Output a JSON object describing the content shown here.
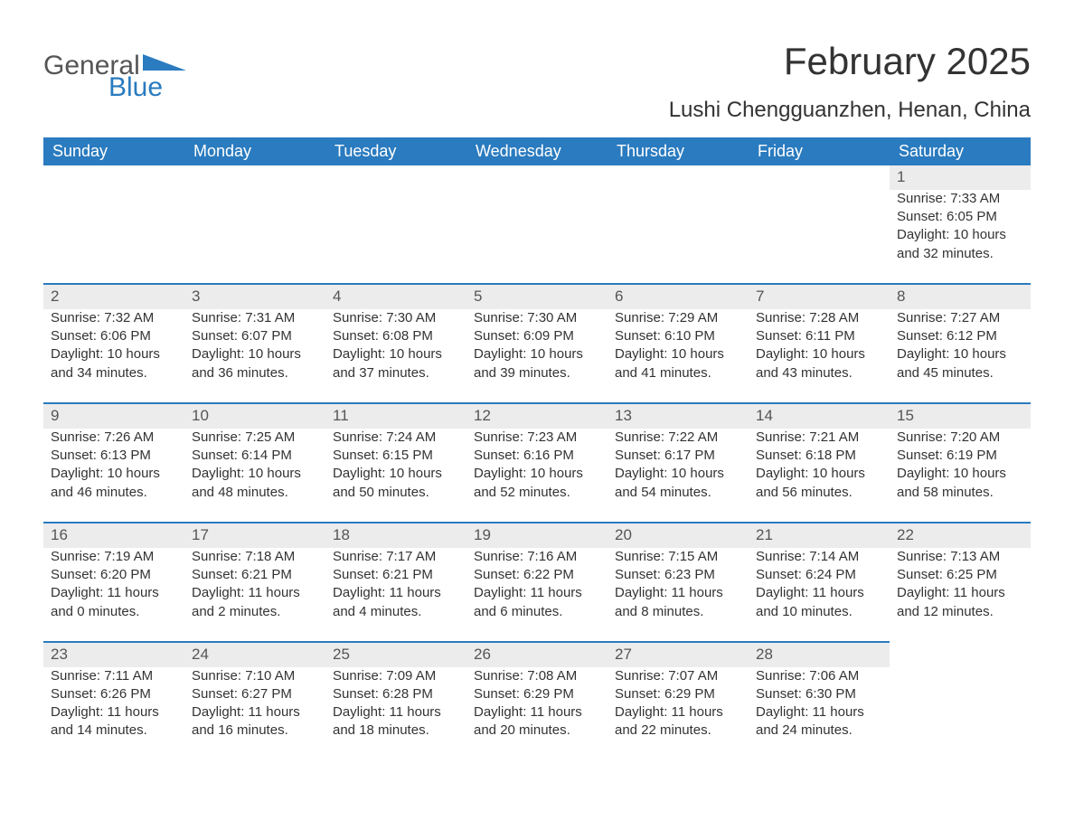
{
  "brand": {
    "name_gray": "General",
    "name_blue": "Blue"
  },
  "title": "February 2025",
  "location": "Lushi Chengguanzhen, Henan, China",
  "colors": {
    "header_bg": "#2a7bbf",
    "header_text": "#ffffff",
    "daynum_bg": "#ececec",
    "bg": "#ffffff",
    "text": "#333333",
    "brand_gray": "#555555",
    "brand_blue": "#2a7bbf"
  },
  "weekday_headers": [
    "Sunday",
    "Monday",
    "Tuesday",
    "Wednesday",
    "Thursday",
    "Friday",
    "Saturday"
  ],
  "weeks": [
    {
      "nums": [
        "",
        "",
        "",
        "",
        "",
        "",
        "1"
      ],
      "cells": [
        "",
        "",
        "",
        "",
        "",
        "",
        "Sunrise: 7:33 AM\nSunset: 6:05 PM\nDaylight: 10 hours and 32 minutes."
      ]
    },
    {
      "nums": [
        "2",
        "3",
        "4",
        "5",
        "6",
        "7",
        "8"
      ],
      "cells": [
        "Sunrise: 7:32 AM\nSunset: 6:06 PM\nDaylight: 10 hours and 34 minutes.",
        "Sunrise: 7:31 AM\nSunset: 6:07 PM\nDaylight: 10 hours and 36 minutes.",
        "Sunrise: 7:30 AM\nSunset: 6:08 PM\nDaylight: 10 hours and 37 minutes.",
        "Sunrise: 7:30 AM\nSunset: 6:09 PM\nDaylight: 10 hours and 39 minutes.",
        "Sunrise: 7:29 AM\nSunset: 6:10 PM\nDaylight: 10 hours and 41 minutes.",
        "Sunrise: 7:28 AM\nSunset: 6:11 PM\nDaylight: 10 hours and 43 minutes.",
        "Sunrise: 7:27 AM\nSunset: 6:12 PM\nDaylight: 10 hours and 45 minutes."
      ]
    },
    {
      "nums": [
        "9",
        "10",
        "11",
        "12",
        "13",
        "14",
        "15"
      ],
      "cells": [
        "Sunrise: 7:26 AM\nSunset: 6:13 PM\nDaylight: 10 hours and 46 minutes.",
        "Sunrise: 7:25 AM\nSunset: 6:14 PM\nDaylight: 10 hours and 48 minutes.",
        "Sunrise: 7:24 AM\nSunset: 6:15 PM\nDaylight: 10 hours and 50 minutes.",
        "Sunrise: 7:23 AM\nSunset: 6:16 PM\nDaylight: 10 hours and 52 minutes.",
        "Sunrise: 7:22 AM\nSunset: 6:17 PM\nDaylight: 10 hours and 54 minutes.",
        "Sunrise: 7:21 AM\nSunset: 6:18 PM\nDaylight: 10 hours and 56 minutes.",
        "Sunrise: 7:20 AM\nSunset: 6:19 PM\nDaylight: 10 hours and 58 minutes."
      ]
    },
    {
      "nums": [
        "16",
        "17",
        "18",
        "19",
        "20",
        "21",
        "22"
      ],
      "cells": [
        "Sunrise: 7:19 AM\nSunset: 6:20 PM\nDaylight: 11 hours and 0 minutes.",
        "Sunrise: 7:18 AM\nSunset: 6:21 PM\nDaylight: 11 hours and 2 minutes.",
        "Sunrise: 7:17 AM\nSunset: 6:21 PM\nDaylight: 11 hours and 4 minutes.",
        "Sunrise: 7:16 AM\nSunset: 6:22 PM\nDaylight: 11 hours and 6 minutes.",
        "Sunrise: 7:15 AM\nSunset: 6:23 PM\nDaylight: 11 hours and 8 minutes.",
        "Sunrise: 7:14 AM\nSunset: 6:24 PM\nDaylight: 11 hours and 10 minutes.",
        "Sunrise: 7:13 AM\nSunset: 6:25 PM\nDaylight: 11 hours and 12 minutes."
      ]
    },
    {
      "nums": [
        "23",
        "24",
        "25",
        "26",
        "27",
        "28",
        ""
      ],
      "cells": [
        "Sunrise: 7:11 AM\nSunset: 6:26 PM\nDaylight: 11 hours and 14 minutes.",
        "Sunrise: 7:10 AM\nSunset: 6:27 PM\nDaylight: 11 hours and 16 minutes.",
        "Sunrise: 7:09 AM\nSunset: 6:28 PM\nDaylight: 11 hours and 18 minutes.",
        "Sunrise: 7:08 AM\nSunset: 6:29 PM\nDaylight: 11 hours and 20 minutes.",
        "Sunrise: 7:07 AM\nSunset: 6:29 PM\nDaylight: 11 hours and 22 minutes.",
        "Sunrise: 7:06 AM\nSunset: 6:30 PM\nDaylight: 11 hours and 24 minutes.",
        ""
      ]
    }
  ]
}
